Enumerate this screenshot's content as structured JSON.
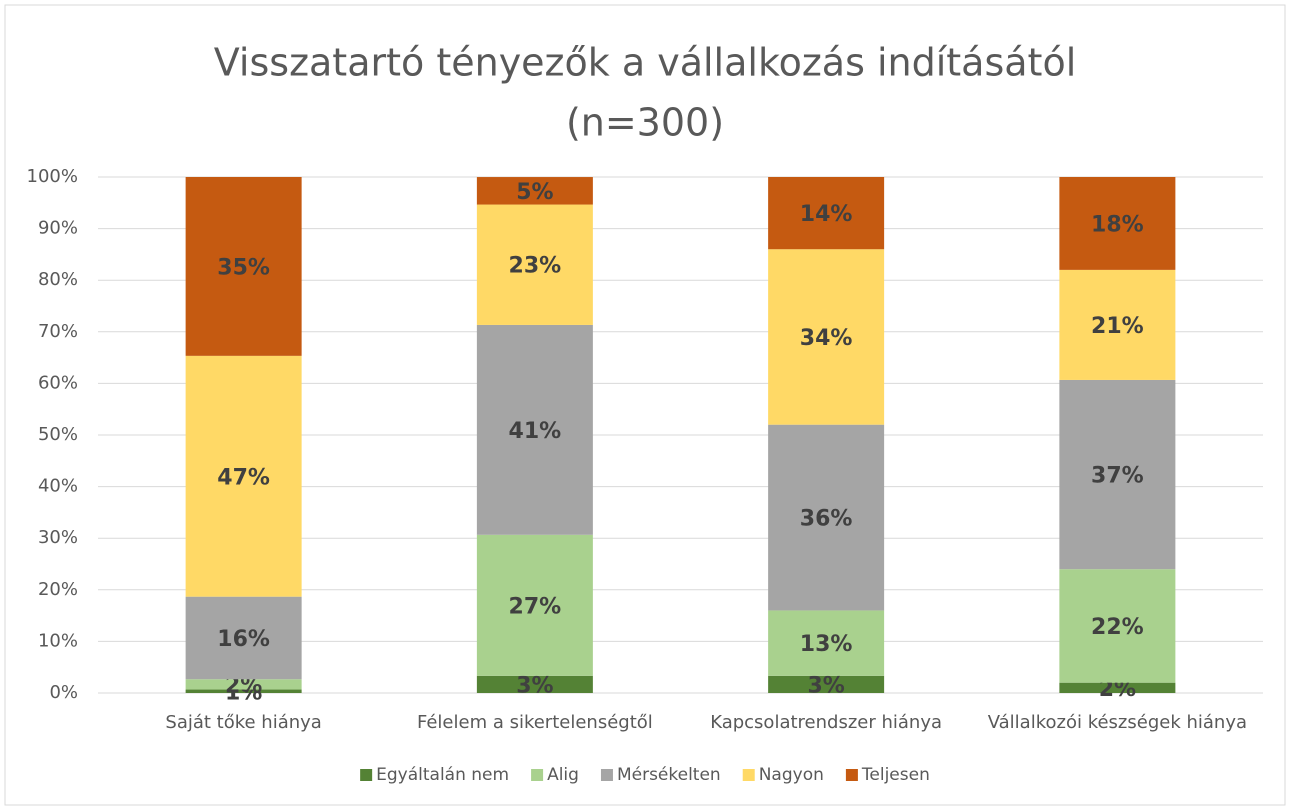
{
  "chart_data": {
    "type": "stacked_bar",
    "title": [
      "Visszatartó tényezők a vállalkozás indításától",
      "(n=300)"
    ],
    "categories": [
      "Saját tőke hiánya",
      "Félelem a sikertelenségtől",
      "Kapcsolatrendszer hiánya",
      "Vállalkozói készségek hiánya"
    ],
    "series": [
      {
        "name": "Egyáltalán nem",
        "color": "#548235",
        "values": [
          0.67,
          3.33,
          3.33,
          2
        ],
        "value_labels": [
          "1%",
          "3%",
          "3%",
          "2%"
        ]
      },
      {
        "name": "Alig",
        "color": "#a9d18e",
        "values": [
          2,
          27.33,
          12.67,
          22
        ],
        "value_labels": [
          "2%",
          "27%",
          "13%",
          "22%"
        ]
      },
      {
        "name": "Mérsékelten",
        "color": "#a5a5a5",
        "values": [
          16,
          40.67,
          36,
          36.67
        ],
        "value_labels": [
          "16%",
          "41%",
          "36%",
          "37%"
        ]
      },
      {
        "name": "Nagyon",
        "color": "#ffd966",
        "values": [
          46.67,
          23.33,
          34,
          21.33
        ],
        "value_labels": [
          "47%",
          "23%",
          "34%",
          "21%"
        ]
      },
      {
        "name": "Teljesen",
        "color": "#c55a11",
        "values": [
          34.66,
          5.33,
          14,
          18
        ],
        "value_labels": [
          "35%",
          "5%",
          "14%",
          "18%"
        ]
      }
    ],
    "ylim": [
      0,
      100
    ],
    "yticks": [
      {
        "value": 0,
        "label": "0%"
      },
      {
        "value": 10,
        "label": "10%"
      },
      {
        "value": 20,
        "label": "20%"
      },
      {
        "value": 30,
        "label": "30%"
      },
      {
        "value": 40,
        "label": "40%"
      },
      {
        "value": 50,
        "label": "50%"
      },
      {
        "value": 60,
        "label": "60%"
      },
      {
        "value": 70,
        "label": "70%"
      },
      {
        "value": 80,
        "label": "80%"
      },
      {
        "value": 90,
        "label": "90%"
      },
      {
        "value": 100,
        "label": "100%"
      }
    ],
    "grid": true,
    "legend": "bottom"
  }
}
